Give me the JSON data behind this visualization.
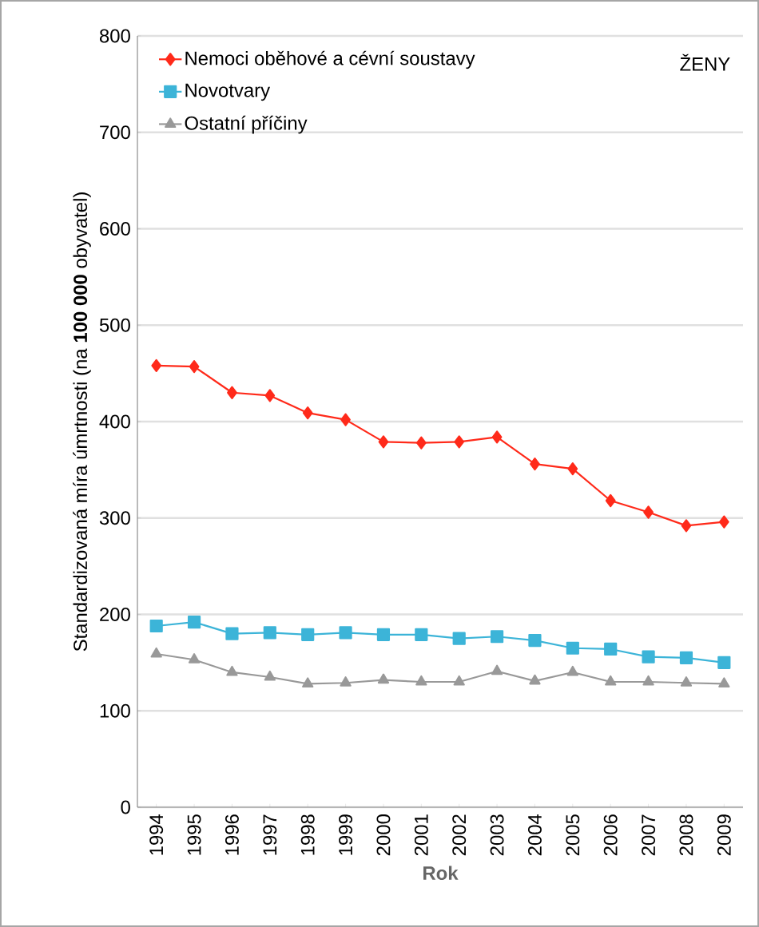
{
  "chart_data": {
    "type": "line",
    "xlabel": "Rok",
    "ylabel": "Standardizovaná míra úmrtnosti (na **100 000** obyvatel)",
    "annotations": [
      "ŽENY"
    ],
    "categories": [
      "1994",
      "1995",
      "1996",
      "1997",
      "1998",
      "1999",
      "2000",
      "2001",
      "2002",
      "2003",
      "2004",
      "2005",
      "2006",
      "2007",
      "2008",
      "2009"
    ],
    "series": [
      {
        "name": "Nemoci oběhové a cévní soustavy",
        "color": "#ff2a1a",
        "marker": "diamond",
        "values": [
          458,
          457,
          430,
          427,
          409,
          402,
          379,
          378,
          379,
          384,
          356,
          351,
          318,
          306,
          292,
          296
        ]
      },
      {
        "name": "Novotvary",
        "color": "#3cb4d8",
        "marker": "square",
        "values": [
          188,
          192,
          180,
          181,
          179,
          181,
          179,
          179,
          175,
          177,
          173,
          165,
          164,
          156,
          155,
          150
        ]
      },
      {
        "name": "Ostatní příčiny",
        "color": "#999999",
        "marker": "triangle",
        "values": [
          159,
          153,
          140,
          135,
          128,
          129,
          132,
          130,
          130,
          141,
          131,
          140,
          130,
          130,
          129,
          128
        ]
      }
    ],
    "ylim": [
      0,
      800
    ],
    "yticks": [
      0,
      100,
      200,
      300,
      400,
      500,
      600,
      700,
      800
    ],
    "grid": "y",
    "legend": "top left",
    "line_style": "solid"
  }
}
